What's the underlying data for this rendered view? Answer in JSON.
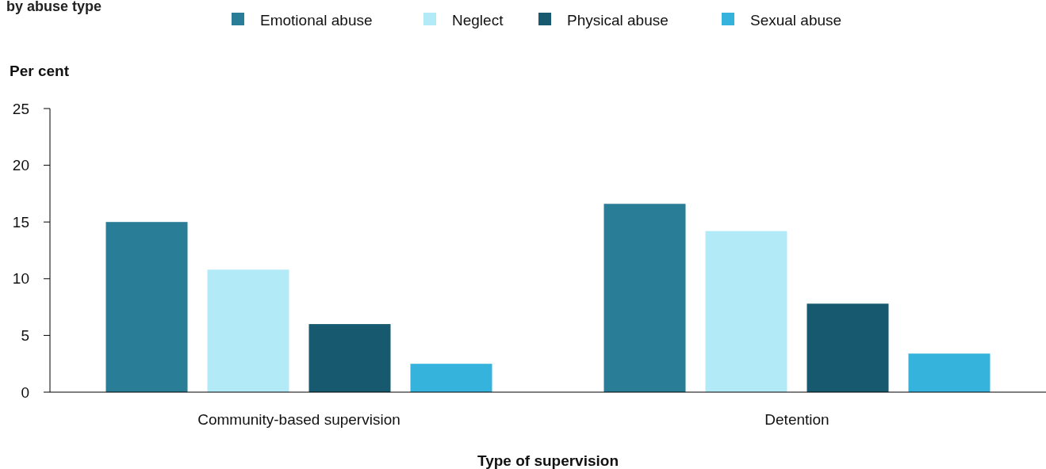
{
  "chart_data": {
    "type": "bar",
    "title": "by abuse type",
    "xlabel": "Type of supervision",
    "ylabel": "Per cent",
    "categories": [
      "Community-based supervision",
      "Detention"
    ],
    "series": [
      {
        "name": "Emotional abuse",
        "color": "#2a7d96",
        "values": [
          15.0,
          16.6
        ]
      },
      {
        "name": "Neglect",
        "color": "#b3eaf8",
        "values": [
          10.8,
          14.2
        ]
      },
      {
        "name": "Physical abuse",
        "color": "#175a70",
        "values": [
          6.0,
          7.8
        ]
      },
      {
        "name": "Sexual abuse",
        "color": "#36b3dd",
        "values": [
          2.5,
          3.4
        ]
      }
    ],
    "ylim": [
      0,
      25
    ],
    "yticks": [
      0,
      5,
      10,
      15,
      20,
      25
    ],
    "grid": false,
    "legend": "top"
  }
}
